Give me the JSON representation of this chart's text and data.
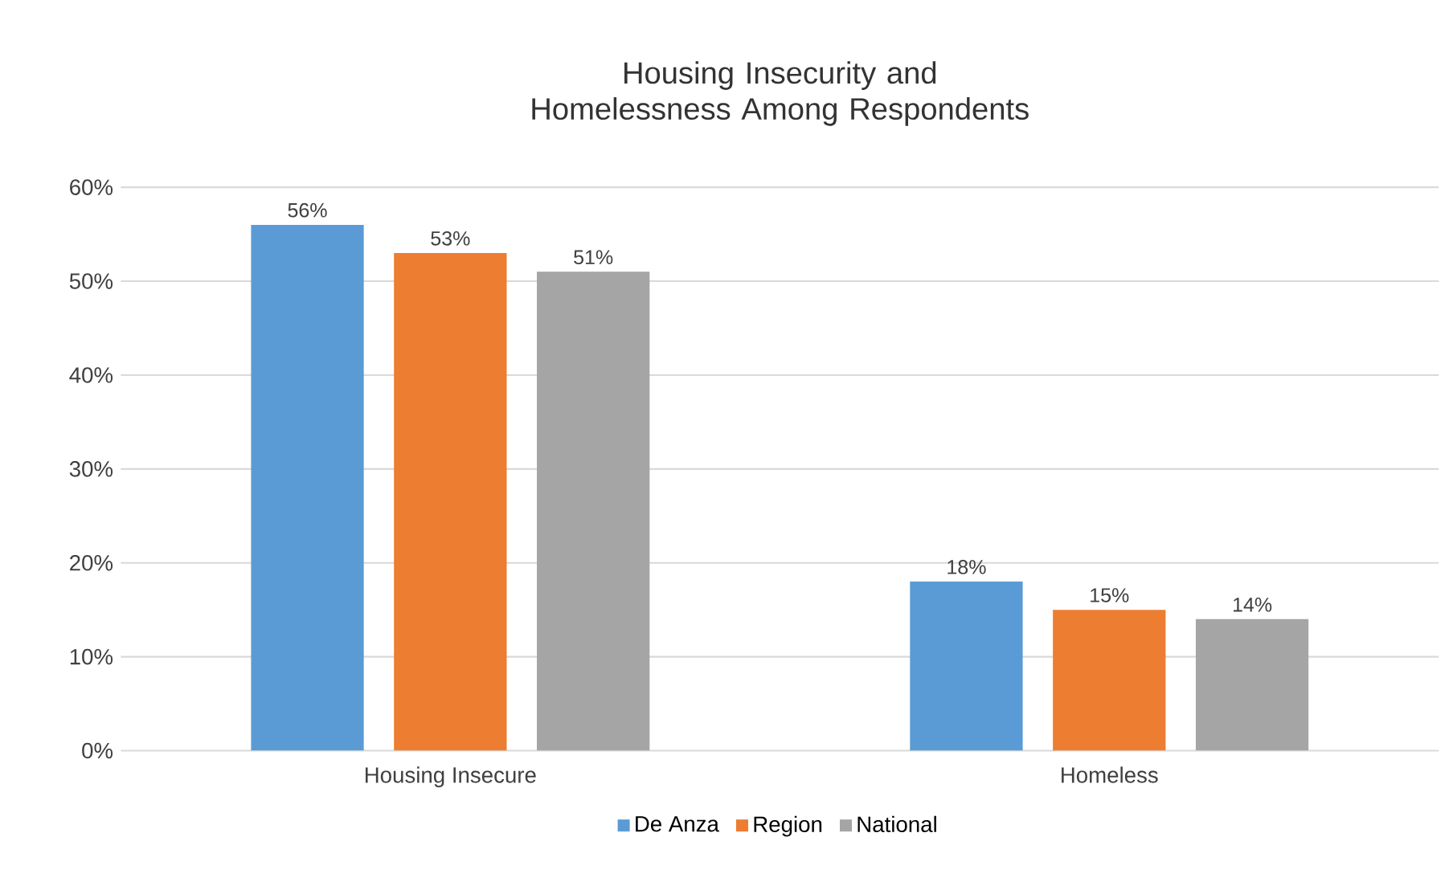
{
  "chart_data": {
    "type": "bar",
    "title": "Housing Insecurity and Homelessness Among Respondents",
    "categories": [
      "Housing Insecure",
      "Homeless"
    ],
    "series": [
      {
        "name": "De Anza",
        "color": "#5b9bd5",
        "values": [
          56,
          18
        ],
        "value_labels": [
          "56%",
          "18%"
        ]
      },
      {
        "name": "Region",
        "color": "#ed7d31",
        "values": [
          53,
          15
        ],
        "value_labels": [
          "53%",
          "15%"
        ]
      },
      {
        "name": "National",
        "color": "#a5a5a5",
        "values": [
          51,
          14
        ],
        "value_labels": [
          "51%",
          "14%"
        ]
      }
    ],
    "ylim": [
      0,
      60
    ],
    "yticks": [
      {
        "value": 0,
        "label": "0%"
      },
      {
        "value": 10,
        "label": "10%"
      },
      {
        "value": 20,
        "label": "20%"
      },
      {
        "value": 30,
        "label": "30%"
      },
      {
        "value": 40,
        "label": "40%"
      },
      {
        "value": 50,
        "label": "50%"
      },
      {
        "value": 60,
        "label": "60%"
      }
    ],
    "grid": "y",
    "legend": "bottom"
  }
}
